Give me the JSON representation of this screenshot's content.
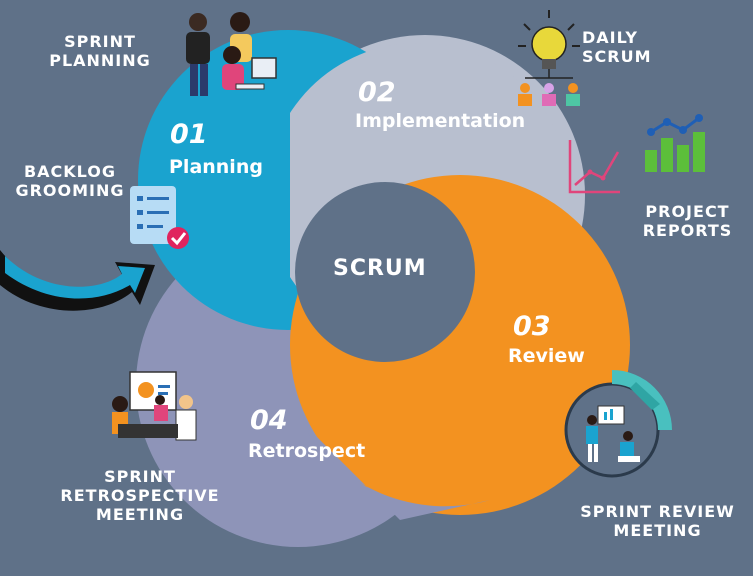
{
  "center_label": "SCRUM",
  "stages": [
    {
      "number": "01",
      "name": "Planning",
      "color": "#1aa3cf"
    },
    {
      "number": "02",
      "name": "Implementation",
      "color": "#b8bfcf"
    },
    {
      "number": "03",
      "name": "Review",
      "color": "#f39220"
    },
    {
      "number": "04",
      "name": "Retrospect",
      "color": "#8e94b8"
    }
  ],
  "annotations": {
    "sprint_planning": [
      "SPRINT",
      "PLANNING"
    ],
    "backlog_grooming": [
      "BACKLOG",
      "GROOMING"
    ],
    "daily_scrum": [
      "DAILY",
      "SCRUM"
    ],
    "project_reports": [
      "PROJECT",
      "REPORTS"
    ],
    "sprint_retrospective": [
      "SPRINT",
      "RETROSPECTIVE",
      "MEETING"
    ],
    "sprint_review": [
      "SPRINT REVIEW",
      "MEETING"
    ]
  },
  "icons": [
    "team-people-icon",
    "checklist-icon",
    "lightbulb-team-icon",
    "bar-chart-icon",
    "line-chart-icon",
    "arrow-icon",
    "presentation-meeting-icon",
    "review-meeting-icon"
  ]
}
